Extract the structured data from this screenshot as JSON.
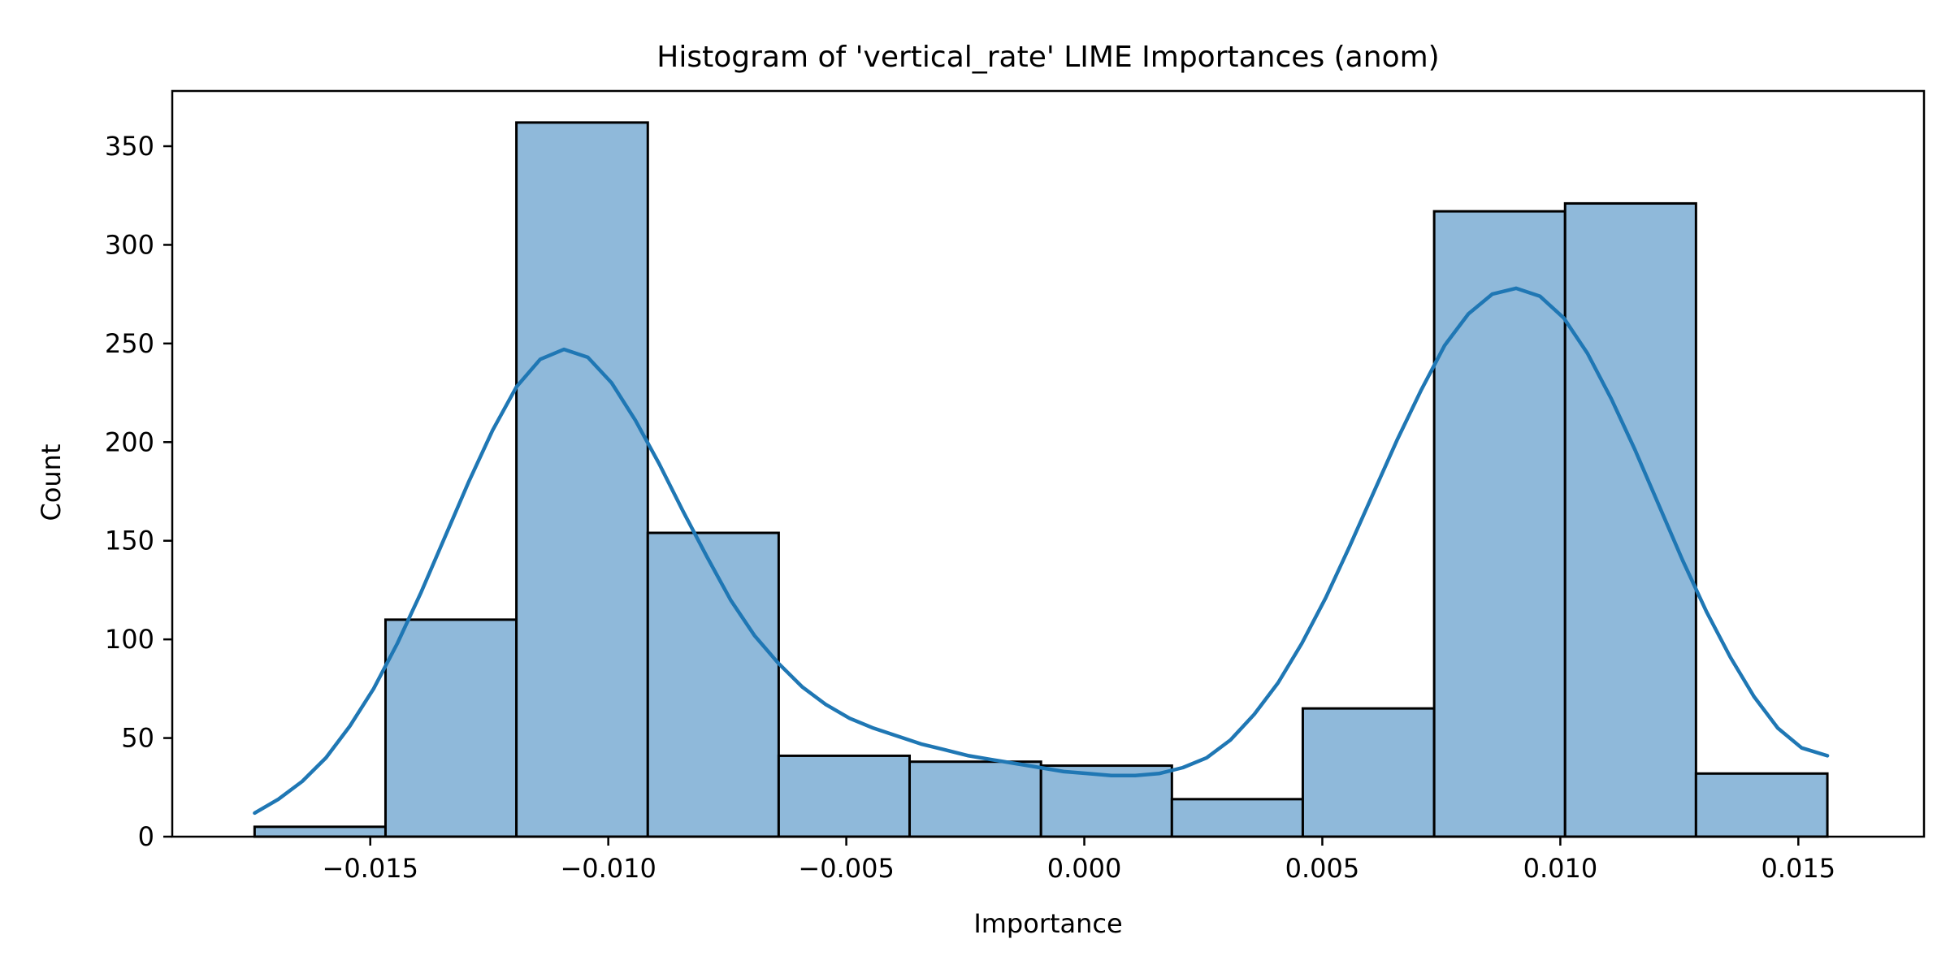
{
  "chart_data": {
    "type": "bar",
    "title": "Histogram of 'vertical_rate' LIME Importances (anom)",
    "xlabel": "Importance",
    "ylabel": "Count",
    "xlim": [
      -0.01916,
      0.01764
    ],
    "ylim": [
      0,
      378
    ],
    "x_ticks": [
      {
        "value": -0.015,
        "label": "−0.015"
      },
      {
        "value": -0.01,
        "label": "−0.010"
      },
      {
        "value": -0.005,
        "label": "−0.005"
      },
      {
        "value": 0.0,
        "label": "0.000"
      },
      {
        "value": 0.005,
        "label": "0.005"
      },
      {
        "value": 0.01,
        "label": "0.010"
      },
      {
        "value": 0.015,
        "label": "0.015"
      }
    ],
    "y_ticks": [
      0,
      50,
      100,
      150,
      200,
      250,
      300,
      350
    ],
    "bin_edges": [
      -0.01743,
      -0.01468,
      -0.01193,
      -0.00917,
      -0.00642,
      -0.00367,
      -0.00091,
      0.00184,
      0.00459,
      0.00735,
      0.0101,
      0.01285,
      0.01561
    ],
    "values": [
      5,
      110,
      362,
      154,
      41,
      38,
      36,
      19,
      65,
      317,
      321,
      32
    ],
    "bar_color": "#8fb9da",
    "bar_edge_color": "#000000",
    "kde_color": "#1f77b4",
    "kde": {
      "x": [
        -0.01743,
        -0.01693,
        -0.01643,
        -0.01593,
        -0.01543,
        -0.01493,
        -0.01443,
        -0.01393,
        -0.01343,
        -0.01293,
        -0.01243,
        -0.01193,
        -0.01143,
        -0.01093,
        -0.01043,
        -0.00993,
        -0.00943,
        -0.00893,
        -0.00843,
        -0.00793,
        -0.00743,
        -0.00693,
        -0.00643,
        -0.00593,
        -0.00543,
        -0.00493,
        -0.00443,
        -0.00393,
        -0.00343,
        -0.00293,
        -0.00243,
        -0.00193,
        -0.00143,
        -0.00093,
        -0.00043,
        7e-05,
        0.00057,
        0.00107,
        0.00157,
        0.00207,
        0.00257,
        0.00307,
        0.00357,
        0.00407,
        0.00457,
        0.00507,
        0.00557,
        0.00607,
        0.00657,
        0.00707,
        0.00757,
        0.00807,
        0.00857,
        0.00907,
        0.00957,
        0.01007,
        0.01057,
        0.01107,
        0.01157,
        0.01207,
        0.01257,
        0.01307,
        0.01357,
        0.01407,
        0.01457,
        0.01507,
        0.01561
      ],
      "y": [
        12,
        19,
        28,
        40,
        56,
        75,
        98,
        124,
        152,
        180,
        206,
        228,
        242,
        247,
        243,
        230,
        211,
        189,
        165,
        142,
        120,
        102,
        88,
        76,
        67,
        60,
        55,
        51,
        47,
        44,
        41,
        39,
        37,
        35,
        33,
        32,
        31,
        31,
        32,
        35,
        40,
        49,
        62,
        78,
        98,
        121,
        147,
        174,
        201,
        226,
        249,
        265,
        275,
        278,
        274,
        263,
        245,
        222,
        196,
        168,
        140,
        114,
        91,
        71,
        55,
        45,
        41
      ]
    }
  }
}
